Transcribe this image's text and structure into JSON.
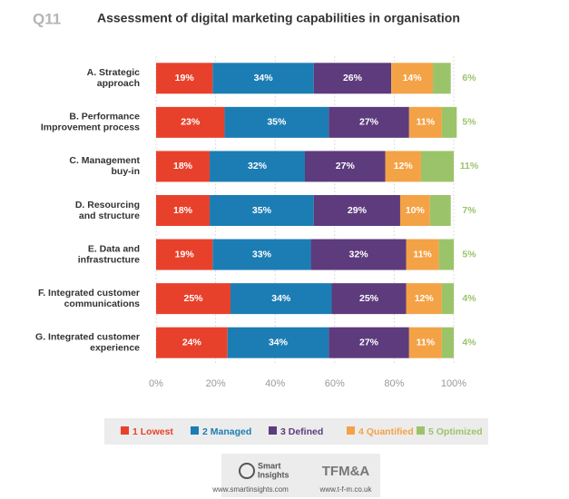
{
  "header": {
    "number": "Q11"
  },
  "chart_data": {
    "type": "stacked-bar-horizontal",
    "title": "Assessment of digital marketing capabilities in organisation",
    "categories": [
      [
        "A. Strategic",
        "approach"
      ],
      [
        "B. Performance",
        "Improvement process"
      ],
      [
        "C. Management",
        "buy-in"
      ],
      [
        "D. Resourcing",
        "and structure"
      ],
      [
        "E. Data and",
        "infrastructure"
      ],
      [
        "F. Integrated customer",
        "communications"
      ],
      [
        "G. Integrated customer",
        "experience"
      ]
    ],
    "series": [
      {
        "name": "1 Lowest",
        "color": "#e8412b",
        "values": [
          19,
          23,
          18,
          18,
          19,
          25,
          24
        ],
        "value_labels": [
          "19%",
          "23%",
          "18%",
          "18%",
          "19%",
          "25%",
          "24%"
        ]
      },
      {
        "name": "2 Managed",
        "color": "#1c7db4",
        "values": [
          34,
          35,
          32,
          35,
          33,
          34,
          34
        ],
        "value_labels": [
          "34%",
          "35%",
          "32%",
          "35%",
          "33%",
          "34%",
          "34%"
        ]
      },
      {
        "name": "3 Defined",
        "color": "#5d3b7d",
        "values": [
          26,
          27,
          27,
          29,
          32,
          25,
          27
        ],
        "value_labels": [
          "26%",
          "27%",
          "27%",
          "29%",
          "32%",
          "25%",
          "27%"
        ]
      },
      {
        "name": "4 Quantified",
        "color": "#f4a246",
        "values": [
          14,
          11,
          12,
          10,
          11,
          12,
          11
        ],
        "value_labels": [
          "14%",
          "11%",
          "12%",
          "10%",
          "11%",
          "12%",
          "11%"
        ]
      },
      {
        "name": "5 Optimized",
        "color": "#9bc46a",
        "values": [
          6,
          5,
          11,
          7,
          5,
          4,
          4
        ],
        "value_labels": [
          "6%",
          "5%",
          "11%",
          "7%",
          "5%",
          "4%",
          "4%"
        ]
      }
    ],
    "xlim": [
      0,
      100
    ],
    "xticks": [
      {
        "value": 0,
        "label": "0%"
      },
      {
        "value": 20,
        "label": "20%"
      },
      {
        "value": 40,
        "label": "40%"
      },
      {
        "value": 60,
        "label": "60%"
      },
      {
        "value": 80,
        "label": "80%"
      },
      {
        "value": 100,
        "label": "100%"
      }
    ],
    "grid": true
  },
  "footer": {
    "logo1": [
      "Smart",
      "Insights"
    ],
    "url1": "www.smartinsights.com",
    "logo2": "TFM&A",
    "url2": "www.t-f-m.co.uk"
  }
}
